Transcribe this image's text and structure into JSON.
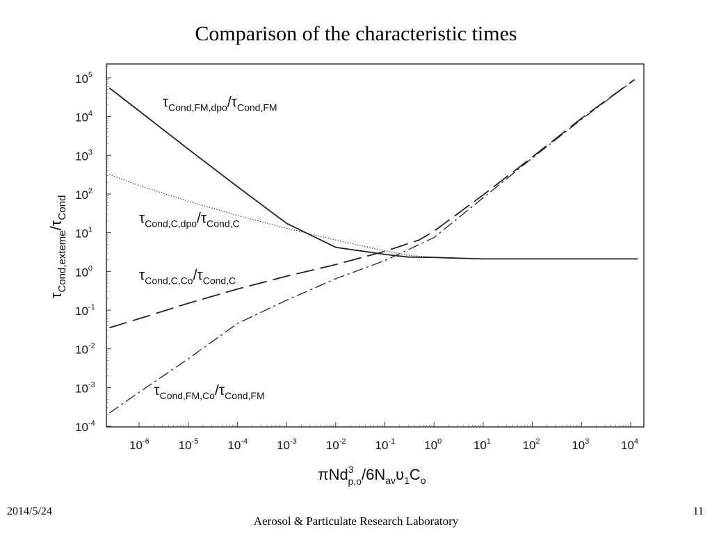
{
  "slide": {
    "title": "Comparison of the characteristic times",
    "date": "2014/5/24",
    "lab": "Aerosol & Particulate Research Laboratory",
    "page_number": "11"
  },
  "chart_data": {
    "type": "line",
    "xscale": "log",
    "yscale": "log",
    "xlim": [
      2e-07,
      20000.0
    ],
    "ylim": [
      0.0001,
      200000.0
    ],
    "grid": false,
    "legend": "inline labels",
    "xlabel": {
      "main": "πNd",
      "sup": "3",
      "sub": "p,o",
      "tail": "/6N",
      "tail_sub": "av",
      "tail2": "υ",
      "tail2_sub": "1",
      "tail3": "C",
      "tail3_sub": "o"
    },
    "ylabel": {
      "main": "τ",
      "sub": "Cond,exteme",
      "slash": "/τ",
      "sub2": "Cond"
    },
    "x_ticks": [
      {
        "value": 1e-06,
        "label": "10",
        "exp": "-6"
      },
      {
        "value": 1e-05,
        "label": "10",
        "exp": "-5"
      },
      {
        "value": 0.0001,
        "label": "10",
        "exp": "-4"
      },
      {
        "value": 0.001,
        "label": "10",
        "exp": "-3"
      },
      {
        "value": 0.01,
        "label": "10",
        "exp": "-2"
      },
      {
        "value": 0.1,
        "label": "10",
        "exp": "-1"
      },
      {
        "value": 1.0,
        "label": "10",
        "exp": "0"
      },
      {
        "value": 10.0,
        "label": "10",
        "exp": "1"
      },
      {
        "value": 100.0,
        "label": "10",
        "exp": "2"
      },
      {
        "value": 1000.0,
        "label": "10",
        "exp": "3"
      },
      {
        "value": 10000.0,
        "label": "10",
        "exp": "4"
      }
    ],
    "y_ticks": [
      {
        "value": 100000.0,
        "label": "10",
        "exp": "5"
      },
      {
        "value": 10000.0,
        "label": "10",
        "exp": "4"
      },
      {
        "value": 1000.0,
        "label": "10",
        "exp": "3"
      },
      {
        "value": 100.0,
        "label": "10",
        "exp": "2"
      },
      {
        "value": 10.0,
        "label": "10",
        "exp": "1"
      },
      {
        "value": 1.0,
        "label": "10",
        "exp": "0"
      },
      {
        "value": 0.1,
        "label": "10",
        "exp": "-1"
      },
      {
        "value": 0.01,
        "label": "10",
        "exp": "-2"
      },
      {
        "value": 0.001,
        "label": "10",
        "exp": "-3"
      },
      {
        "value": 0.0001,
        "label": "10",
        "exp": "-4"
      }
    ],
    "series": [
      {
        "label": {
          "t1": "τ",
          "s1": "Cond,FM,dpo",
          "t2": "/τ",
          "s2": "Cond,FM"
        },
        "label_at": [
          3e-06,
          18000.0
        ],
        "style": "solid",
        "x": [
          2.5e-07,
          1e-06,
          1e-05,
          0.0001,
          0.001,
          0.01,
          0.1,
          0.3,
          1,
          3,
          10,
          100,
          10000.0,
          14000.0
        ],
        "y": [
          55000.0,
          14000.0,
          1450.0,
          155,
          17.5,
          4.2,
          2.75,
          2.35,
          2.3,
          2.2,
          2.1,
          2.1,
          2.1,
          2.1
        ]
      },
      {
        "label": {
          "t1": "τ",
          "s1": "Cond,C,dpo",
          "t2": "/τ",
          "s2": "Cond,C"
        },
        "label_at": [
          1e-06,
          18
        ],
        "style": "dotted",
        "x": [
          2.5e-07,
          1e-06,
          1e-05,
          0.0001,
          0.001,
          0.01,
          0.1,
          0.3,
          1,
          3
        ],
        "y": [
          320,
          165,
          65,
          28,
          13,
          6.5,
          3.4,
          2.6,
          2.3,
          2.2
        ]
      },
      {
        "label": {
          "t1": "τ",
          "s1": "Cond,C,Co",
          "t2": "/τ",
          "s2": "Cond,C"
        },
        "label_at": [
          1e-06,
          0.6
        ],
        "style": "dashed",
        "x": [
          2.5e-07,
          1e-06,
          1e-05,
          0.0001,
          0.001,
          0.01,
          0.1,
          0.5,
          1,
          10,
          100,
          1000.0,
          12000.0
        ],
        "y": [
          0.035,
          0.06,
          0.15,
          0.35,
          0.75,
          1.5,
          3.3,
          6.5,
          11,
          95,
          900,
          9000,
          90000.0
        ]
      },
      {
        "label": {
          "t1": "τ",
          "s1": "Cond,FM,Co",
          "t2": "/τ",
          "s2": "Cond,FM"
        },
        "label_at": [
          2e-06,
          0.00065
        ],
        "style": "dashdot",
        "x": [
          2.5e-07,
          1e-06,
          1e-05,
          0.0001,
          0.001,
          0.01,
          0.1,
          1,
          10,
          100,
          1000.0,
          12000.0
        ],
        "y": [
          0.00022,
          0.00075,
          0.0055,
          0.045,
          0.18,
          0.65,
          1.9,
          7.5,
          80,
          850,
          8500,
          90000.0
        ]
      }
    ]
  }
}
